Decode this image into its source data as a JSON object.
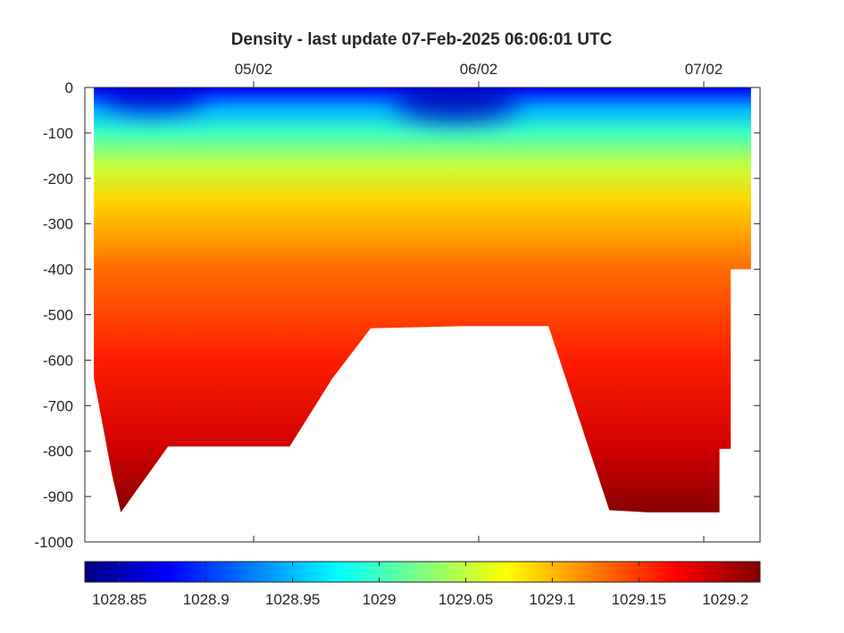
{
  "chart_data": {
    "type": "heatmap",
    "title": "Density - last update 07-Feb-2025 06:06:01 UTC",
    "xlabel": "",
    "ylabel": "",
    "x_ticks": [
      "05/02",
      "06/02",
      "07/02"
    ],
    "x_tick_days": [
      5,
      6,
      7
    ],
    "xlim_days": [
      4.25,
      7.25
    ],
    "y_ticks": [
      0,
      -100,
      -200,
      -300,
      -400,
      -500,
      -600,
      -700,
      -800,
      -900,
      -1000
    ],
    "ylim": [
      -1000,
      0
    ],
    "colorbar": {
      "colormap": "jet",
      "range": [
        1028.83,
        1029.22
      ],
      "ticks": [
        1028.85,
        1028.9,
        1028.95,
        1029,
        1029.05,
        1029.1,
        1029.15,
        1029.2
      ],
      "tick_labels": [
        "1028.85",
        "1028.9",
        "1028.95",
        "1029",
        "1029.05",
        "1029.1",
        "1029.15",
        "1029.2"
      ]
    },
    "profiles": [
      {
        "day": 4.29,
        "bottom_depth": -640
      },
      {
        "day": 4.33,
        "bottom_depth": -745
      },
      {
        "day": 4.37,
        "bottom_depth": -850
      },
      {
        "day": 4.41,
        "bottom_depth": -935
      },
      {
        "day": 4.62,
        "bottom_depth": -790
      },
      {
        "day": 5.16,
        "bottom_depth": -790
      },
      {
        "day": 5.35,
        "bottom_depth": -640
      },
      {
        "day": 5.52,
        "bottom_depth": -530
      },
      {
        "day": 5.94,
        "bottom_depth": -525
      },
      {
        "day": 6.31,
        "bottom_depth": -525
      },
      {
        "day": 6.58,
        "bottom_depth": -930
      },
      {
        "day": 6.75,
        "bottom_depth": -935
      },
      {
        "day": 7.07,
        "bottom_depth": -935
      },
      {
        "day": 7.07,
        "bottom_depth": -795
      },
      {
        "day": 7.12,
        "bottom_depth": -795
      },
      {
        "day": 7.12,
        "bottom_depth": -400
      },
      {
        "day": 7.21,
        "bottom_depth": -400
      }
    ],
    "density_profile": [
      {
        "depth": 0,
        "density": 1028.88
      },
      {
        "depth": -50,
        "density": 1028.95
      },
      {
        "depth": -100,
        "density": 1029.0
      },
      {
        "depth": -170,
        "density": 1029.05
      },
      {
        "depth": -250,
        "density": 1029.09
      },
      {
        "depth": -400,
        "density": 1029.13
      },
      {
        "depth": -600,
        "density": 1029.16
      },
      {
        "depth": -800,
        "density": 1029.19
      },
      {
        "depth": -950,
        "density": 1029.22
      }
    ],
    "features": [
      {
        "day": 5.9,
        "depth": -30,
        "density": 1028.85
      },
      {
        "day": 4.55,
        "depth": -10,
        "density": 1028.86
      }
    ]
  }
}
